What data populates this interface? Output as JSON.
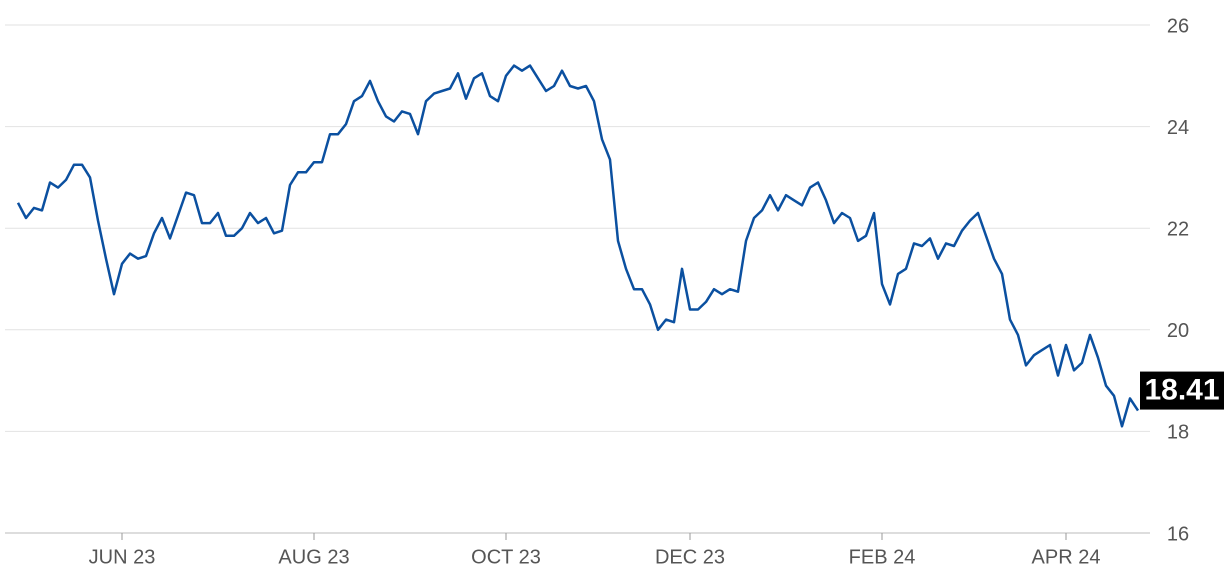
{
  "chart_data": {
    "type": "line",
    "categories": [
      null,
      null,
      null,
      null,
      null,
      null,
      null,
      null,
      null,
      null,
      null,
      null,
      null,
      "JUN 23",
      null,
      null,
      null,
      null,
      null,
      null,
      null,
      null,
      null,
      null,
      null,
      null,
      null,
      null,
      null,
      null,
      null,
      null,
      null,
      null,
      null,
      null,
      null,
      "AUG 23",
      null,
      null,
      null,
      null,
      null,
      null,
      null,
      null,
      null,
      null,
      null,
      null,
      null,
      null,
      null,
      null,
      null,
      null,
      null,
      null,
      null,
      null,
      null,
      "OCT 23",
      null,
      null,
      null,
      null,
      null,
      null,
      null,
      null,
      null,
      null,
      null,
      null,
      null,
      null,
      null,
      null,
      null,
      null,
      null,
      null,
      null,
      null,
      "DEC 23",
      null,
      null,
      null,
      null,
      null,
      null,
      null,
      null,
      null,
      null,
      null,
      null,
      null,
      null,
      null,
      null,
      null,
      null,
      null,
      null,
      null,
      null,
      null,
      "FEB 24",
      null,
      null,
      null,
      null,
      null,
      null,
      null,
      null,
      null,
      null,
      null,
      null,
      null,
      null,
      null,
      null,
      null,
      null,
      null,
      null,
      null,
      null,
      "APR 24",
      null,
      null,
      null,
      null,
      null,
      null,
      null,
      null,
      null
    ],
    "values": [
      22.5,
      22.2,
      22.4,
      22.35,
      22.9,
      22.8,
      22.95,
      23.25,
      23.25,
      23.0,
      22.15,
      21.4,
      20.7,
      21.3,
      21.5,
      21.4,
      21.45,
      21.9,
      22.2,
      21.8,
      22.25,
      22.7,
      22.65,
      22.1,
      22.1,
      22.3,
      21.85,
      21.85,
      22.0,
      22.3,
      22.1,
      22.2,
      21.9,
      21.95,
      22.85,
      23.1,
      23.1,
      23.3,
      23.3,
      23.85,
      23.85,
      24.05,
      24.5,
      24.6,
      24.9,
      24.5,
      24.2,
      24.1,
      24.3,
      24.25,
      23.85,
      24.5,
      24.65,
      24.7,
      24.75,
      25.05,
      24.55,
      24.95,
      25.05,
      24.6,
      24.5,
      25.0,
      25.2,
      25.1,
      25.2,
      24.95,
      24.7,
      24.8,
      25.1,
      24.8,
      24.75,
      24.8,
      24.5,
      23.75,
      23.35,
      21.75,
      21.2,
      20.8,
      20.8,
      20.5,
      20.0,
      20.2,
      20.15,
      21.2,
      20.4,
      20.4,
      20.55,
      20.8,
      20.7,
      20.8,
      20.75,
      21.75,
      22.2,
      22.35,
      22.65,
      22.35,
      22.65,
      22.55,
      22.45,
      22.8,
      22.9,
      22.55,
      22.1,
      22.3,
      22.2,
      21.75,
      21.85,
      22.3,
      20.9,
      20.5,
      21.1,
      21.2,
      21.7,
      21.65,
      21.8,
      21.4,
      21.7,
      21.65,
      21.95,
      22.15,
      22.3,
      21.85,
      21.4,
      21.1,
      20.2,
      19.9,
      19.3,
      19.5,
      19.6,
      19.7,
      19.1,
      19.7,
      19.2,
      19.35,
      19.9,
      19.45,
      18.9,
      18.7,
      18.1,
      18.65,
      18.41
    ],
    "color": "#0b50a0",
    "ylim": [
      16,
      26
    ],
    "yticks": [
      16,
      18,
      20,
      22,
      24,
      26
    ],
    "grid": true
  }
}
